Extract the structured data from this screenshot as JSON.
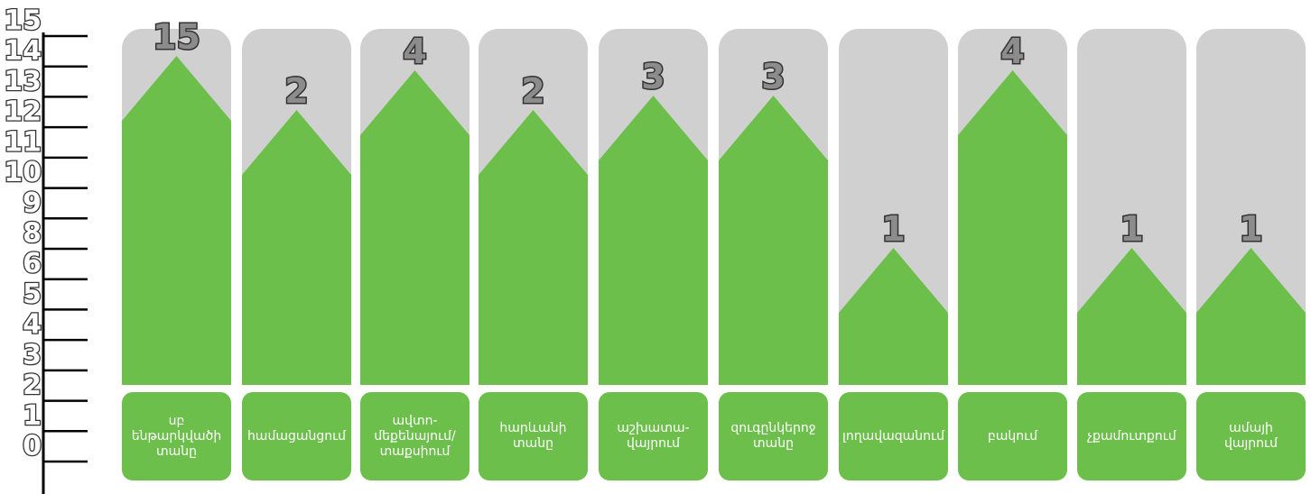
{
  "chart_data": {
    "type": "bar",
    "title": "",
    "xlabel": "",
    "ylabel": "",
    "yticks": [
      "0",
      "1",
      "2",
      "3",
      "4",
      "5",
      "6",
      "8",
      "9",
      "10",
      "11",
      "12",
      "13",
      "14",
      "15"
    ],
    "categories": [
      "սբ\nենթարկվածի\nտանը",
      "համացանցում",
      "ավտո-\nմեքենայում/\nտաքսիում",
      "հարևանի\nտանը",
      "աշխատա-\nվայրում",
      "զուգընկերոջ\nտանը",
      "լողավազանում",
      "բակում",
      "չքամուտքում",
      "ամայի\nվայրում"
    ],
    "values": [
      15,
      2,
      4,
      2,
      3,
      3,
      1,
      4,
      1,
      1
    ],
    "value_labels": [
      "15",
      "2",
      "4",
      "2",
      "3",
      "3",
      "1",
      "4",
      "1",
      "1"
    ],
    "colors": {
      "bar": "#6cbf4b",
      "background_column": "#d0d0d0",
      "category_box": "#6cbf4b",
      "axis": "#000000"
    }
  }
}
